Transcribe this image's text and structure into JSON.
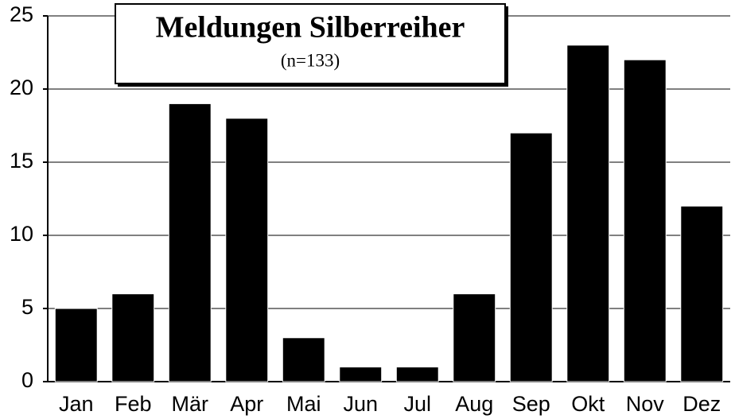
{
  "chart_data": {
    "type": "bar",
    "title": "Meldungen Silberreiher",
    "subtitle": "(n=133)",
    "categories": [
      "Jan",
      "Feb",
      "Mär",
      "Apr",
      "Mai",
      "Jun",
      "Jul",
      "Aug",
      "Sep",
      "Okt",
      "Nov",
      "Dez"
    ],
    "values": [
      5,
      6,
      19,
      18,
      3,
      1,
      1,
      6,
      17,
      23,
      22,
      12
    ],
    "color": "#000000",
    "ylim": [
      0,
      25
    ],
    "yticks": [
      0,
      5,
      10,
      15,
      20,
      25
    ],
    "grid": true
  }
}
